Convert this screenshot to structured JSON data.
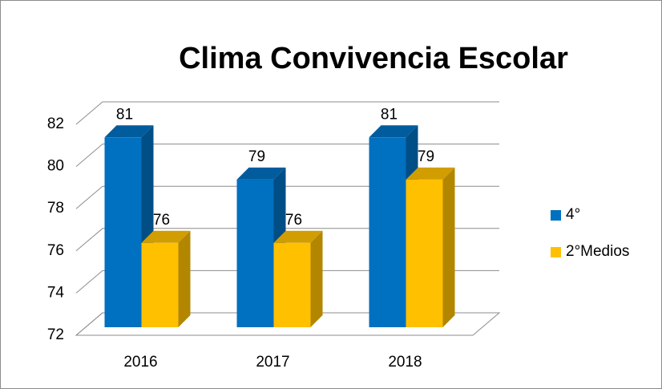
{
  "chart_data": {
    "type": "bar",
    "title": "Clima Convivencia Escolar",
    "categories": [
      "2016",
      "2017",
      "2018"
    ],
    "series": [
      {
        "name": "4°",
        "color": "#0070c0",
        "values": [
          81,
          79,
          81
        ]
      },
      {
        "name": "2°Medios",
        "color": "#ffc000",
        "values": [
          76,
          76,
          79
        ]
      }
    ],
    "ylim": [
      72,
      82
    ],
    "yticks": [
      72,
      74,
      76,
      78,
      80,
      82
    ],
    "grid": true,
    "legend": "right"
  }
}
